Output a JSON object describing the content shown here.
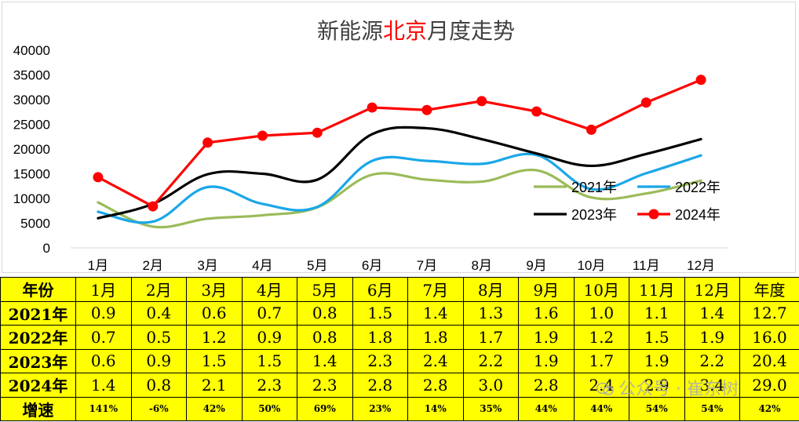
{
  "chart_data": {
    "type": "line",
    "title_parts": [
      {
        "text": "新能源",
        "color": "#404040"
      },
      {
        "text": "北京",
        "color": "#ff0000"
      },
      {
        "text": "月度走势",
        "color": "#404040"
      }
    ],
    "categories": [
      "1月",
      "2月",
      "3月",
      "4月",
      "5月",
      "6月",
      "7月",
      "8月",
      "9月",
      "10月",
      "11月",
      "12月"
    ],
    "ylim": [
      0,
      40000
    ],
    "yticks": [
      "40000",
      "35000",
      "30000",
      "25000",
      "20000",
      "15000",
      "10000",
      "5000",
      "0"
    ],
    "grid": false,
    "legend_position": "lower-right",
    "series": [
      {
        "name": "2021年",
        "color": "#9bbb59",
        "smooth": true,
        "markers": false,
        "values": [
          9200,
          4300,
          5900,
          6600,
          8200,
          14800,
          13800,
          13400,
          15700,
          10200,
          11000,
          13600
        ]
      },
      {
        "name": "2022年",
        "color": "#1aa7e8",
        "smooth": true,
        "markers": false,
        "values": [
          7300,
          5300,
          12300,
          8900,
          8300,
          17600,
          17600,
          17000,
          18800,
          11900,
          15100,
          18700
        ]
      },
      {
        "name": "2023年",
        "color": "#000000",
        "smooth": true,
        "markers": false,
        "values": [
          6000,
          8900,
          14900,
          15000,
          13800,
          23000,
          24200,
          22000,
          19100,
          16600,
          19000,
          22000
        ]
      },
      {
        "name": "2024年",
        "color": "#ff0000",
        "smooth": false,
        "markers": true,
        "values": [
          14300,
          8400,
          21300,
          22700,
          23300,
          28400,
          27900,
          29700,
          27600,
          23900,
          29400,
          34000
        ]
      }
    ]
  },
  "table": {
    "header": [
      "年份",
      "1月",
      "2月",
      "3月",
      "4月",
      "5月",
      "6月",
      "7月",
      "8月",
      "9月",
      "10月",
      "11月",
      "12月",
      "年度"
    ],
    "rows": [
      [
        "2021年",
        "0.9",
        "0.4",
        "0.6",
        "0.7",
        "0.8",
        "1.5",
        "1.4",
        "1.3",
        "1.6",
        "1.0",
        "1.1",
        "1.4",
        "12.7"
      ],
      [
        "2022年",
        "0.7",
        "0.5",
        "1.2",
        "0.9",
        "0.8",
        "1.8",
        "1.8",
        "1.7",
        "1.9",
        "1.2",
        "1.5",
        "1.9",
        "16.0"
      ],
      [
        "2023年",
        "0.6",
        "0.9",
        "1.5",
        "1.5",
        "1.4",
        "2.3",
        "2.4",
        "2.2",
        "1.9",
        "1.7",
        "1.9",
        "2.2",
        "20.4"
      ],
      [
        "2024年",
        "1.4",
        "0.8",
        "2.1",
        "2.3",
        "2.3",
        "2.8",
        "2.8",
        "3.0",
        "2.8",
        "2.4",
        "2.9",
        "3.4",
        "29.0"
      ]
    ],
    "growth": [
      "增速",
      "141%",
      "-6%",
      "42%",
      "50%",
      "69%",
      "23%",
      "14%",
      "35%",
      "44%",
      "44%",
      "54%",
      "54%",
      "42%"
    ]
  },
  "watermark": {
    "text": "公众号 · 崔东树",
    "icon": "wechat-icon"
  }
}
